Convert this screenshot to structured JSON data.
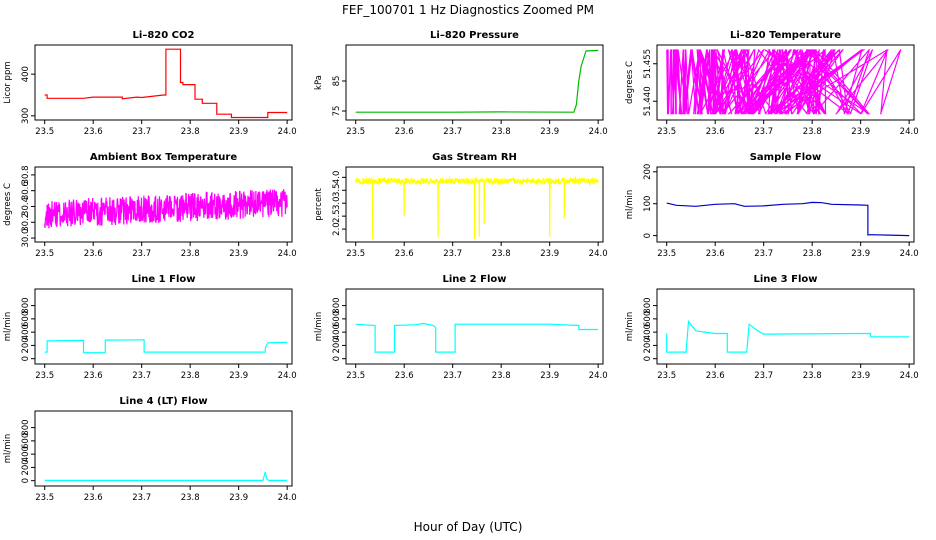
{
  "figure": {
    "title": "FEF_100701  1 Hz Diagnostics Zoomed PM",
    "xlabel": "Hour of Day (UTC)"
  },
  "chart_data": [
    {
      "type": "line",
      "title": "Li–820 CO2",
      "ylabel": "Licor ppm",
      "color": "#ff0000",
      "xlim": [
        23.48,
        24.01
      ],
      "xticks": [
        23.5,
        23.6,
        23.7,
        23.8,
        23.9,
        24.0
      ],
      "ylim": [
        290,
        470
      ],
      "yticks": [
        300,
        400
      ],
      "series": [
        {
          "x": [
            23.5,
            23.505,
            23.505,
            23.58,
            23.6,
            23.66,
            23.66,
            23.69,
            23.7,
            23.745,
            23.75,
            23.75,
            23.765,
            23.765,
            23.78,
            23.78,
            23.785,
            23.785,
            23.81,
            23.81,
            23.825,
            23.825,
            23.855,
            23.855,
            23.885,
            23.885,
            23.96,
            23.96,
            24.0
          ],
          "y": [
            350,
            350,
            342,
            342,
            345,
            345,
            341,
            345,
            344,
            350,
            350,
            460,
            460,
            460,
            460,
            380,
            380,
            375,
            375,
            340,
            340,
            330,
            330,
            304,
            304,
            296,
            296,
            308,
            308
          ]
        }
      ]
    },
    {
      "type": "line",
      "title": "Li–820 Pressure",
      "ylabel": "kPa",
      "color": "#00bb00",
      "xlim": [
        23.48,
        24.01
      ],
      "xticks": [
        23.5,
        23.6,
        23.7,
        23.8,
        23.9,
        24.0
      ],
      "ylim": [
        72,
        97
      ],
      "yticks": [
        75,
        85
      ],
      "series": [
        {
          "x": [
            23.5,
            23.6,
            23.7,
            23.8,
            23.95,
            23.955,
            23.96,
            23.965,
            23.97,
            23.975,
            24.0
          ],
          "y": [
            74.6,
            74.6,
            74.6,
            74.7,
            74.6,
            77,
            85,
            90,
            92.5,
            95,
            95.2
          ]
        }
      ]
    },
    {
      "type": "line",
      "title": "Li–820 Temperature",
      "ylabel": "degrees C",
      "color": "#ff00ff",
      "xlim": [
        23.48,
        24.01
      ],
      "xticks": [
        23.5,
        23.6,
        23.7,
        23.8,
        23.9,
        24.0
      ],
      "ylim": [
        51.4325,
        51.4625
      ],
      "yticks": [
        51.44,
        51.455
      ],
      "series": [
        {
          "toggle": true,
          "low": 51.435,
          "high": 51.4605,
          "x0": 23.5,
          "x1": 23.99,
          "count": 320
        }
      ]
    },
    {
      "type": "line",
      "title": "Ambient Box Temperature",
      "ylabel": "degrees C",
      "color": "#ff00ff",
      "xlim": [
        23.48,
        24.01
      ],
      "xticks": [
        23.5,
        23.6,
        23.7,
        23.8,
        23.9,
        24.0
      ],
      "ylim": [
        29.95,
        30.9
      ],
      "yticks": [
        30.0,
        30.2,
        30.4,
        30.6,
        30.8
      ],
      "series": [
        {
          "noise": true,
          "x0": 23.5,
          "x1": 24.0,
          "count": 700,
          "base_start": 30.3,
          "base_end": 30.45,
          "amp": 0.18
        }
      ]
    },
    {
      "type": "line",
      "title": "Gas Stream RH",
      "ylabel": "percent",
      "color": "#ffff00",
      "xlim": [
        23.48,
        24.01
      ],
      "xticks": [
        23.5,
        23.6,
        23.7,
        23.8,
        23.9,
        24.0
      ],
      "ylim": [
        1.5,
        4.4
      ],
      "yticks": [
        2.0,
        2.5,
        3.0,
        3.5,
        4.0
      ],
      "series": [
        {
          "noise": true,
          "x0": 23.5,
          "x1": 24.0,
          "count": 600,
          "base_start": 3.85,
          "base_end": 3.85,
          "amp": 0.12,
          "spikes": [
            [
              23.535,
              1.6
            ],
            [
              23.6,
              2.5
            ],
            [
              23.67,
              1.7
            ],
            [
              23.745,
              1.6
            ],
            [
              23.755,
              1.7
            ],
            [
              23.765,
              2.2
            ],
            [
              23.9,
              1.7
            ],
            [
              23.93,
              2.4
            ]
          ]
        }
      ]
    },
    {
      "type": "line",
      "title": "Sample Flow",
      "ylabel": "ml/min",
      "color": "#0000cc",
      "xlim": [
        23.48,
        24.01
      ],
      "xticks": [
        23.5,
        23.6,
        23.7,
        23.8,
        23.9,
        24.0
      ],
      "ylim": [
        -20,
        215
      ],
      "yticks": [
        0,
        100,
        200
      ],
      "series": [
        {
          "x": [
            23.5,
            23.52,
            23.56,
            23.6,
            23.64,
            23.66,
            23.7,
            23.74,
            23.78,
            23.8,
            23.82,
            23.84,
            23.9,
            23.915,
            23.915,
            23.92,
            24.0
          ],
          "y": [
            102,
            95,
            92,
            98,
            100,
            92,
            93,
            98,
            100,
            104,
            103,
            98,
            96,
            95,
            2,
            3,
            0
          ]
        }
      ]
    },
    {
      "type": "line",
      "title": "Line 1 Flow",
      "ylabel": "ml/min",
      "color": "#00ffff",
      "xlim": [
        23.48,
        24.01
      ],
      "xticks": [
        23.5,
        23.6,
        23.7,
        23.8,
        23.9,
        24.0
      ],
      "ylim": [
        -80,
        1050
      ],
      "yticks": [
        0,
        200,
        400,
        600,
        800
      ],
      "series": [
        {
          "x": [
            23.5,
            23.505,
            23.505,
            23.58,
            23.58,
            23.625,
            23.625,
            23.705,
            23.705,
            23.955,
            23.955,
            23.96,
            24.0
          ],
          "y": [
            100,
            100,
            270,
            275,
            90,
            90,
            280,
            285,
            100,
            100,
            160,
            240,
            245
          ]
        }
      ]
    },
    {
      "type": "line",
      "title": "Line 2 Flow",
      "ylabel": "ml/min",
      "color": "#00ffff",
      "xlim": [
        23.48,
        24.01
      ],
      "xticks": [
        23.5,
        23.6,
        23.7,
        23.8,
        23.9,
        24.0
      ],
      "ylim": [
        -80,
        1050
      ],
      "yticks": [
        0,
        200,
        400,
        600,
        800
      ],
      "series": [
        {
          "x": [
            23.5,
            23.54,
            23.54,
            23.58,
            23.58,
            23.62,
            23.64,
            23.66,
            23.665,
            23.665,
            23.705,
            23.705,
            23.9,
            23.96,
            23.96,
            24.0
          ],
          "y": [
            520,
            500,
            100,
            100,
            500,
            510,
            530,
            500,
            470,
            100,
            100,
            520,
            520,
            500,
            440,
            440
          ]
        }
      ]
    },
    {
      "type": "line",
      "title": "Line 3 Flow",
      "ylabel": "ml/min",
      "color": "#00ffff",
      "xlim": [
        23.48,
        24.01
      ],
      "xticks": [
        23.5,
        23.6,
        23.7,
        23.8,
        23.9,
        24.0
      ],
      "ylim": [
        -80,
        1050
      ],
      "yticks": [
        0,
        200,
        400,
        600,
        800
      ],
      "series": [
        {
          "x": [
            23.5,
            23.5,
            23.505,
            23.505,
            23.54,
            23.545,
            23.56,
            23.6,
            23.625,
            23.625,
            23.665,
            23.67,
            23.69,
            23.7,
            23.9,
            23.92,
            23.92,
            24.0
          ],
          "y": [
            380,
            100,
            100,
            100,
            100,
            560,
            420,
            380,
            380,
            100,
            100,
            520,
            410,
            370,
            380,
            380,
            330,
            330
          ]
        }
      ]
    },
    {
      "type": "line",
      "title": "Line 4 (LT) Flow",
      "ylabel": "ml/min",
      "color": "#00ffff",
      "xlim": [
        23.48,
        24.01
      ],
      "xticks": [
        23.5,
        23.6,
        23.7,
        23.8,
        23.9,
        24.0
      ],
      "ylim": [
        -80,
        1050
      ],
      "yticks": [
        0,
        200,
        400,
        600,
        800
      ],
      "series": [
        {
          "x": [
            23.5,
            23.95,
            23.955,
            23.958,
            23.962,
            24.0
          ],
          "y": [
            5,
            5,
            130,
            30,
            5,
            5
          ]
        }
      ]
    }
  ]
}
